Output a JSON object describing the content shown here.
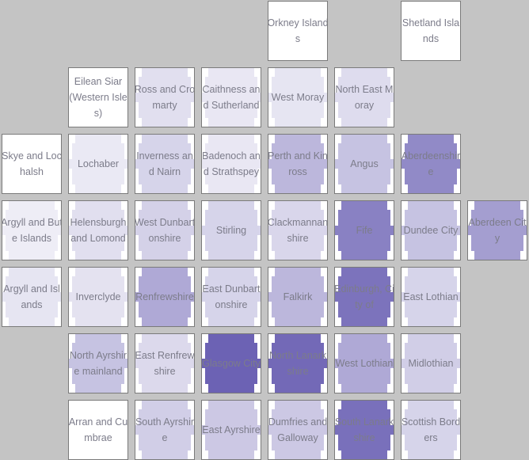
{
  "chart_data": {
    "type": "heatmap",
    "title": "",
    "colors": {
      "background": "#c4c4c4",
      "cell_background": "#ffffff",
      "cell_border": "#7a7a7a",
      "label": "#7c7c8a",
      "scale_low": "#f1f0f7",
      "scale_high": "#6c62b4"
    },
    "value_range": [
      0,
      1
    ],
    "cells": [
      {
        "row": 0,
        "col": 4,
        "label": "Orkney Islands",
        "value": 0.0
      },
      {
        "row": 0,
        "col": 6,
        "label": "Shetland Islands",
        "value": 0.0
      },
      {
        "row": 1,
        "col": 1,
        "label": "Eilean Siar (Western Isles)",
        "value": 0.0
      },
      {
        "row": 1,
        "col": 2,
        "label": "Ross and Cromarty",
        "value": 0.12
      },
      {
        "row": 1,
        "col": 3,
        "label": "Caithness and Sutherland",
        "value": 0.06
      },
      {
        "row": 1,
        "col": 4,
        "label": "West Moray",
        "value": 0.08
      },
      {
        "row": 1,
        "col": 5,
        "label": "North East Moray",
        "value": 0.14
      },
      {
        "row": 2,
        "col": 0,
        "label": "Skye and Lochalsh",
        "value": 0.0
      },
      {
        "row": 2,
        "col": 1,
        "label": "Lochaber",
        "value": 0.05
      },
      {
        "row": 2,
        "col": 2,
        "label": "Inverness and Nairn",
        "value": 0.2
      },
      {
        "row": 2,
        "col": 3,
        "label": "Badenoch and Strathspey",
        "value": 0.06
      },
      {
        "row": 2,
        "col": 4,
        "label": "Perth and Kinross",
        "value": 0.4
      },
      {
        "row": 2,
        "col": 5,
        "label": "Angus",
        "value": 0.32
      },
      {
        "row": 2,
        "col": 6,
        "label": "Aberdeenshire",
        "value": 0.72
      },
      {
        "row": 3,
        "col": 0,
        "label": "Argyll and Bute Islands",
        "value": 0.02
      },
      {
        "row": 3,
        "col": 1,
        "label": "Helensburgh and Lomond",
        "value": 0.12
      },
      {
        "row": 3,
        "col": 2,
        "label": "West Dunbartonshire",
        "value": 0.22
      },
      {
        "row": 3,
        "col": 3,
        "label": "Stirling",
        "value": 0.2
      },
      {
        "row": 3,
        "col": 4,
        "label": "Clackmannanshire",
        "value": 0.18
      },
      {
        "row": 3,
        "col": 5,
        "label": "Fife",
        "value": 0.78
      },
      {
        "row": 3,
        "col": 6,
        "label": "Dundee City",
        "value": 0.32
      },
      {
        "row": 3,
        "col": 7,
        "label": "Aberdeen City",
        "value": 0.58
      },
      {
        "row": 4,
        "col": 0,
        "label": "Argyll and Islands",
        "value": 0.08
      },
      {
        "row": 4,
        "col": 1,
        "label": "Inverclyde",
        "value": 0.1
      },
      {
        "row": 4,
        "col": 2,
        "label": "Renfrewshire",
        "value": 0.5
      },
      {
        "row": 4,
        "col": 3,
        "label": "East Dunbartonshire",
        "value": 0.2
      },
      {
        "row": 4,
        "col": 4,
        "label": "Falkirk",
        "value": 0.4
      },
      {
        "row": 4,
        "col": 5,
        "label": "Edinburgh, City of",
        "value": 0.88
      },
      {
        "row": 4,
        "col": 6,
        "label": "East Lothian",
        "value": 0.2
      },
      {
        "row": 5,
        "col": 1,
        "label": "North Ayrshire mainland",
        "value": 0.32
      },
      {
        "row": 5,
        "col": 2,
        "label": "East Renfrewshire",
        "value": 0.16
      },
      {
        "row": 5,
        "col": 3,
        "label": "Glasgow City",
        "value": 1.0
      },
      {
        "row": 5,
        "col": 4,
        "label": "North Lanarkshire",
        "value": 0.95
      },
      {
        "row": 5,
        "col": 5,
        "label": "West Lothian",
        "value": 0.5
      },
      {
        "row": 5,
        "col": 6,
        "label": "Midlothian",
        "value": 0.24
      },
      {
        "row": 6,
        "col": 1,
        "label": "Arran and Cumbrae",
        "value": 0.0
      },
      {
        "row": 6,
        "col": 2,
        "label": "South Ayrshire",
        "value": 0.24
      },
      {
        "row": 6,
        "col": 3,
        "label": "East Ayrshire",
        "value": 0.28
      },
      {
        "row": 6,
        "col": 4,
        "label": "Dumfries and Galloway",
        "value": 0.28
      },
      {
        "row": 6,
        "col": 5,
        "label": "South Lanarkshire",
        "value": 0.9
      },
      {
        "row": 6,
        "col": 6,
        "label": "Scottish Borders",
        "value": 0.2
      }
    ]
  }
}
